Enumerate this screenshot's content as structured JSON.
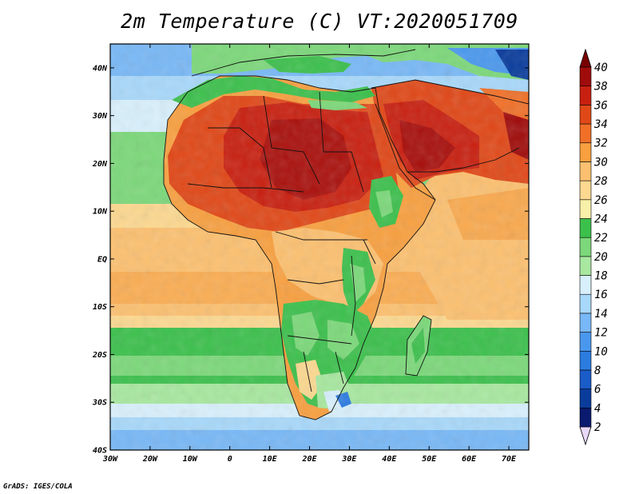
{
  "title": "2m Temperature (C) VT:2020051709",
  "credit": "GrADS: IGES/COLA",
  "map": {
    "lon_range": [
      -30,
      75
    ],
    "lat_range": [
      -40,
      45
    ],
    "x_ticks": [
      "30W",
      "20W",
      "10W",
      "0",
      "10E",
      "20E",
      "30E",
      "40E",
      "50E",
      "60E",
      "70E"
    ],
    "y_ticks": [
      "40N",
      "30N",
      "20N",
      "10N",
      "EQ",
      "10S",
      "20S",
      "30S",
      "40S"
    ]
  },
  "colorbar": {
    "levels": [
      "2",
      "4",
      "6",
      "8",
      "10",
      "12",
      "14",
      "16",
      "18",
      "20",
      "22",
      "24",
      "26",
      "28",
      "30",
      "32",
      "34",
      "36",
      "38",
      "40"
    ],
    "colors": [
      "#e8d8f8",
      "#0a1a6e",
      "#0a3c9c",
      "#1a5cc8",
      "#2c7ce0",
      "#4a98ee",
      "#78b8f6",
      "#a8d8fa",
      "#d8f0fc",
      "#a8e8a0",
      "#7cd87a",
      "#3cc04c",
      "#f8f0a8",
      "#fcd890",
      "#fcc070",
      "#f8a040",
      "#f07028",
      "#e04818",
      "#c82010",
      "#a00c0c",
      "#780000"
    ]
  }
}
